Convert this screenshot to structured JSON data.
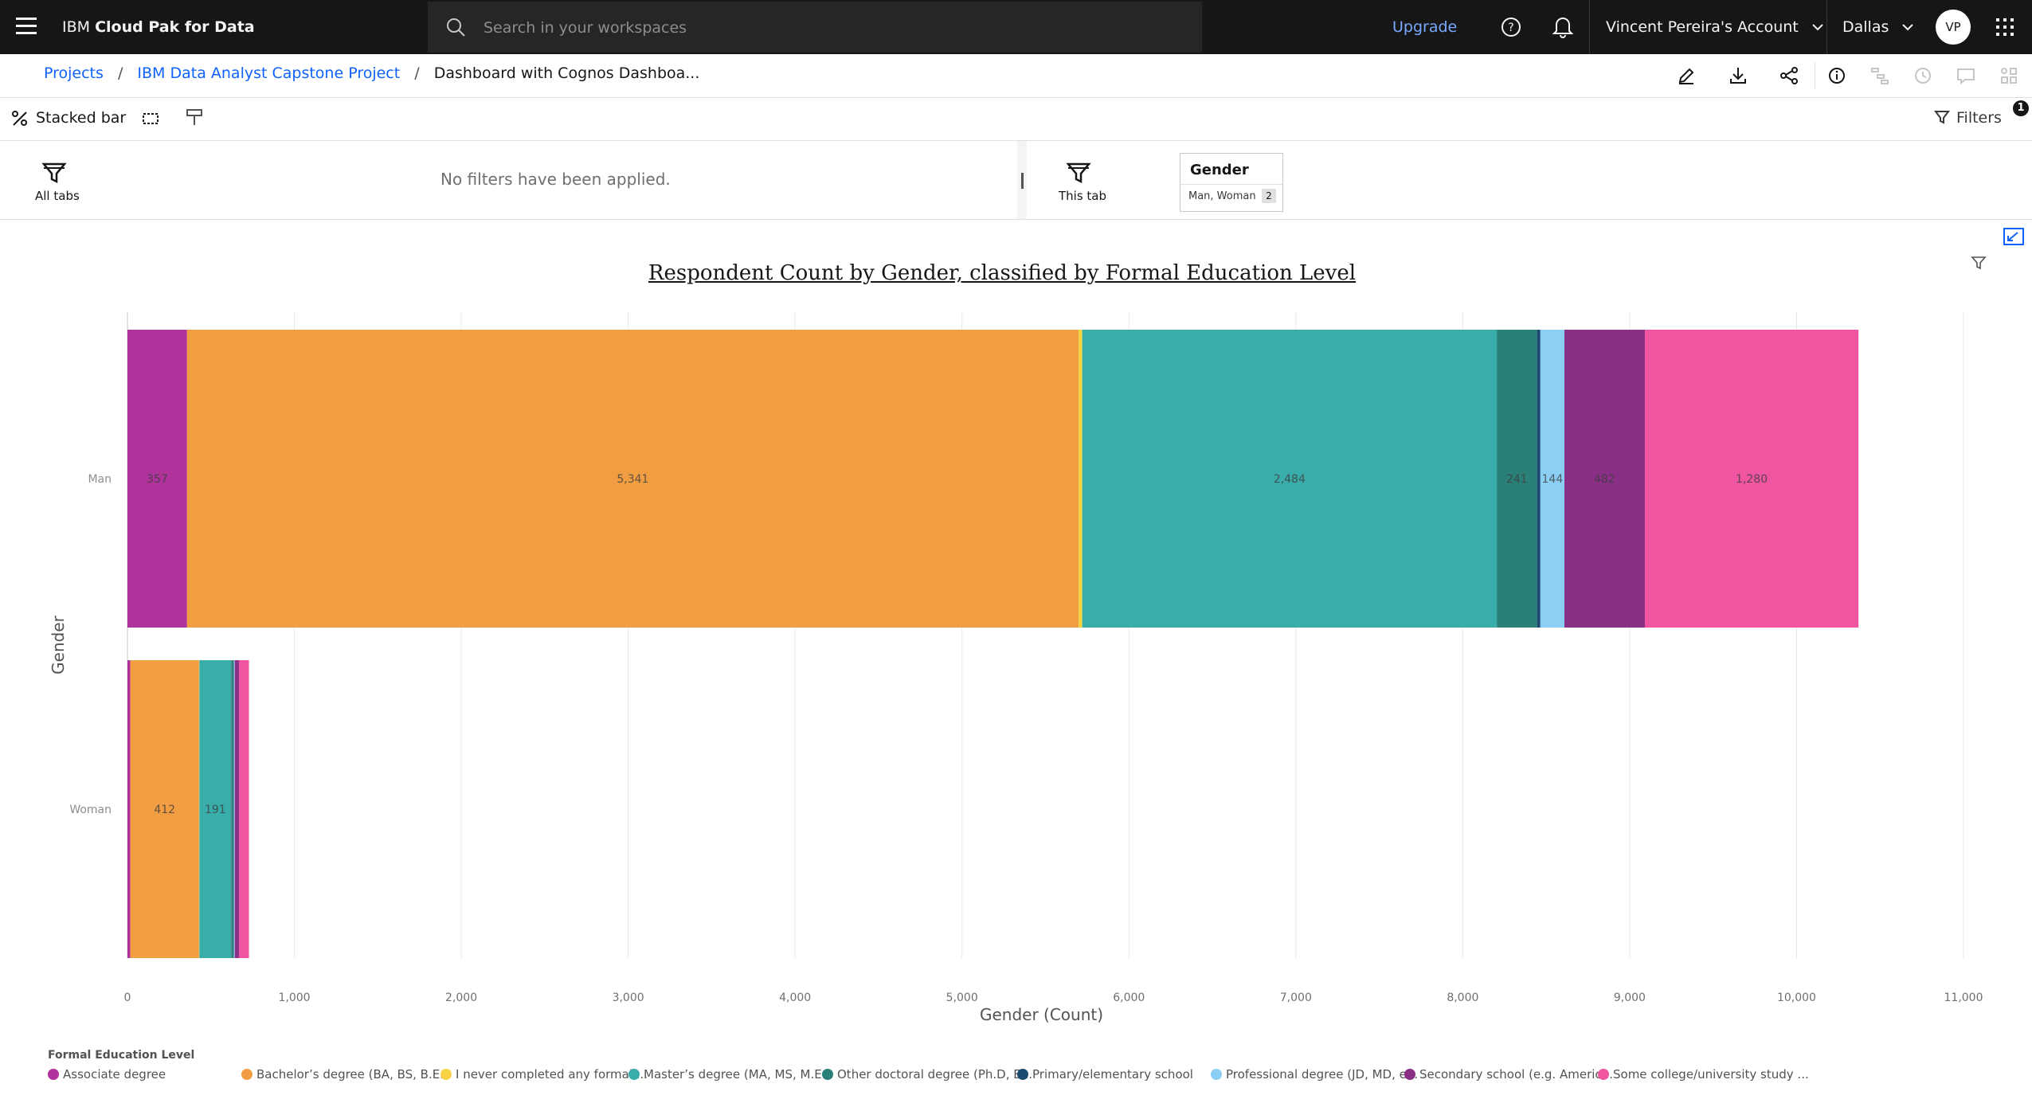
{
  "topbar": {
    "brand_prefix": "IBM",
    "brand_name": "Cloud Pak for Data",
    "search_placeholder": "Search in your workspaces",
    "upgrade_label": "Upgrade",
    "account_label": "Vincent Pereira's Account",
    "region_label": "Dallas",
    "avatar_initials": "VP"
  },
  "breadcrumb": {
    "items": [
      "Projects",
      "IBM Data Analyst Capstone Project"
    ],
    "current": "Dashboard with Cognos Dashboa..."
  },
  "widget_toolbar": {
    "chart_type_label": "Stacked bar",
    "filters_label": "Filters",
    "filters_count": "1"
  },
  "filter_band": {
    "all_tabs_label": "All tabs",
    "no_filters_text": "No filters have been applied.",
    "this_tab_label": "This tab",
    "chip": {
      "title": "Gender",
      "values": "Man, Woman",
      "count": "2"
    }
  },
  "legend": {
    "title": "Formal Education Level",
    "items": [
      {
        "label": "Associate degree",
        "color": "#b0339b"
      },
      {
        "label": "Bachelor’s degree (BA, BS, B.E...",
        "color": "#f19e42"
      },
      {
        "label": "I never completed any formal ...",
        "color": "#f5d342"
      },
      {
        "label": "Master’s degree (MA, MS, M.E...",
        "color": "#38ada9"
      },
      {
        "label": "Other doctoral degree (Ph.D, E...",
        "color": "#2a8078"
      },
      {
        "label": "Primary/elementary school",
        "color": "#1b4b6e"
      },
      {
        "label": "Professional degree (JD, MD, e...",
        "color": "#8ccff5"
      },
      {
        "label": "Secondary school (e.g. Americ...",
        "color": "#8a2f86"
      },
      {
        "label": "Some college/university study ...",
        "color": "#ef55a0"
      }
    ]
  },
  "chart_data": {
    "type": "bar",
    "orientation": "horizontal",
    "stacked": true,
    "title": "Respondent Count by Gender, classified by Formal Education Level",
    "xlabel": "Gender (Count)",
    "ylabel": "Gender",
    "xlim": [
      0,
      11000
    ],
    "xticks": [
      "0",
      "1,000",
      "2,000",
      "3,000",
      "4,000",
      "5,000",
      "6,000",
      "7,000",
      "8,000",
      "9,000",
      "10,000",
      "11,000"
    ],
    "categories": [
      "Man",
      "Woman"
    ],
    "grid": true,
    "legend_position": "bottom",
    "series": [
      {
        "name": "Associate degree",
        "color": "#b0339b",
        "values": [
          357,
          17
        ],
        "labels": [
          "357",
          ""
        ]
      },
      {
        "name": "Bachelor’s degree (BA, BS, B.E...",
        "color": "#f19e42",
        "values": [
          5341,
          412
        ],
        "labels": [
          "5,341",
          "412"
        ]
      },
      {
        "name": "I never completed any formal ...",
        "color": "#f5d342",
        "values": [
          22,
          2
        ],
        "labels": [
          "",
          ""
        ]
      },
      {
        "name": "Master’s degree (MA, MS, M.E...",
        "color": "#38ada9",
        "values": [
          2484,
          191
        ],
        "labels": [
          "2,484",
          "191"
        ]
      },
      {
        "name": "Other doctoral degree (Ph.D, E...",
        "color": "#2a8078",
        "values": [
          241,
          12
        ],
        "labels": [
          "241",
          ""
        ]
      },
      {
        "name": "Primary/elementary school",
        "color": "#1b4b6e",
        "values": [
          20,
          3
        ],
        "labels": [
          "",
          ""
        ]
      },
      {
        "name": "Professional degree (JD, MD, e...",
        "color": "#8ccff5",
        "values": [
          144,
          6
        ],
        "labels": [
          "144",
          ""
        ]
      },
      {
        "name": "Secondary school (e.g. Americ...",
        "color": "#8a2f86",
        "values": [
          482,
          25
        ],
        "labels": [
          "482",
          ""
        ]
      },
      {
        "name": "Some college/university study ...",
        "color": "#ef55a0",
        "values": [
          1280,
          60
        ],
        "labels": [
          "1,280",
          ""
        ]
      }
    ]
  }
}
